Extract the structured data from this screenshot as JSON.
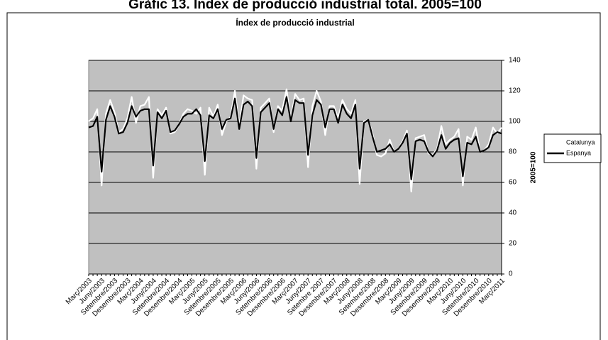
{
  "chart_data": {
    "type": "line",
    "page_title": "Gràfic 13. Índex de producció industrial total. 2005=100",
    "title": "Índex de producció industrial",
    "y_label": "2005=100",
    "categories": [
      "Març/2003",
      null,
      null,
      "Juny/2003",
      null,
      null,
      "Setembre/2003",
      null,
      null,
      "Desembre/2003",
      null,
      null,
      "Març/2004",
      null,
      null,
      "Juny/2004",
      null,
      null,
      "Setembre/2004",
      null,
      null,
      "Desembre/2004",
      null,
      null,
      "Març/2005",
      null,
      null,
      "Juny/2005",
      null,
      null,
      "Setembre/2005",
      null,
      null,
      "Desembre/2005",
      null,
      null,
      "Març/2006",
      null,
      null,
      "Juny/2006",
      null,
      null,
      "Setembre/2006",
      null,
      null,
      "Desembre/2006",
      null,
      null,
      "Març/2007",
      null,
      null,
      "Juny/2007",
      null,
      null,
      "Setembre 2007",
      null,
      null,
      "Desembre/2007",
      null,
      null,
      "Març/2008",
      null,
      null,
      "Juny/2008",
      null,
      null,
      "Setembre/2008",
      null,
      null,
      "Desembre/2008",
      null,
      null,
      "Març/2009",
      null,
      null,
      "Juny/2009",
      null,
      null,
      "Setembre/2009",
      null,
      null,
      "Desembre/2009",
      null,
      null,
      "Març/2010",
      null,
      null,
      "Juny/2010",
      null,
      null,
      "Setembre/2010",
      null,
      null,
      "Desembre/2010",
      null,
      null,
      "Març/2011"
    ],
    "series": [
      {
        "name": "Catalunya",
        "color": "#ffffff",
        "values": [
          100,
          102,
          108,
          58,
          105,
          114,
          106,
          93,
          95,
          102,
          116,
          99,
          110,
          111,
          116,
          63,
          108,
          104,
          109,
          92,
          93,
          98,
          105,
          108,
          107,
          105,
          109,
          65,
          109,
          103,
          111,
          91,
          100,
          103,
          120,
          97,
          117,
          115,
          114,
          69,
          109,
          112,
          115,
          93,
          110,
          107,
          121,
          101,
          118,
          114,
          115,
          70,
          110,
          120,
          113,
          91,
          110,
          110,
          102,
          114,
          108,
          105,
          114,
          59,
          100,
          101,
          92,
          78,
          77,
          79,
          88,
          80,
          82,
          87,
          94,
          54,
          89,
          90,
          91,
          79,
          78,
          82,
          97,
          85,
          88,
          90,
          95,
          58,
          90,
          88,
          96,
          80,
          81,
          85,
          96,
          92,
          96
        ]
      },
      {
        "name": "Espanya",
        "color": "#000000",
        "values": [
          96,
          97,
          103,
          67,
          101,
          110,
          103,
          92,
          93,
          99,
          110,
          103,
          107,
          108,
          108,
          71,
          106,
          102,
          107,
          93,
          94,
          98,
          103,
          105,
          105,
          108,
          104,
          74,
          104,
          102,
          108,
          95,
          101,
          102,
          115,
          95,
          111,
          113,
          110,
          76,
          106,
          109,
          112,
          95,
          108,
          104,
          116,
          100,
          114,
          112,
          112,
          78,
          104,
          114,
          111,
          96,
          108,
          108,
          99,
          111,
          105,
          102,
          111,
          69,
          99,
          101,
          90,
          80,
          81,
          82,
          85,
          80,
          82,
          86,
          92,
          62,
          87,
          88,
          87,
          80,
          77,
          81,
          91,
          82,
          86,
          88,
          89,
          64,
          86,
          85,
          90,
          80,
          81,
          83,
          91,
          93,
          92
        ]
      }
    ],
    "ylim": [
      0,
      140
    ],
    "yticks": [
      0,
      20,
      40,
      60,
      80,
      100,
      120,
      140
    ],
    "grid": true,
    "legend": "right"
  }
}
